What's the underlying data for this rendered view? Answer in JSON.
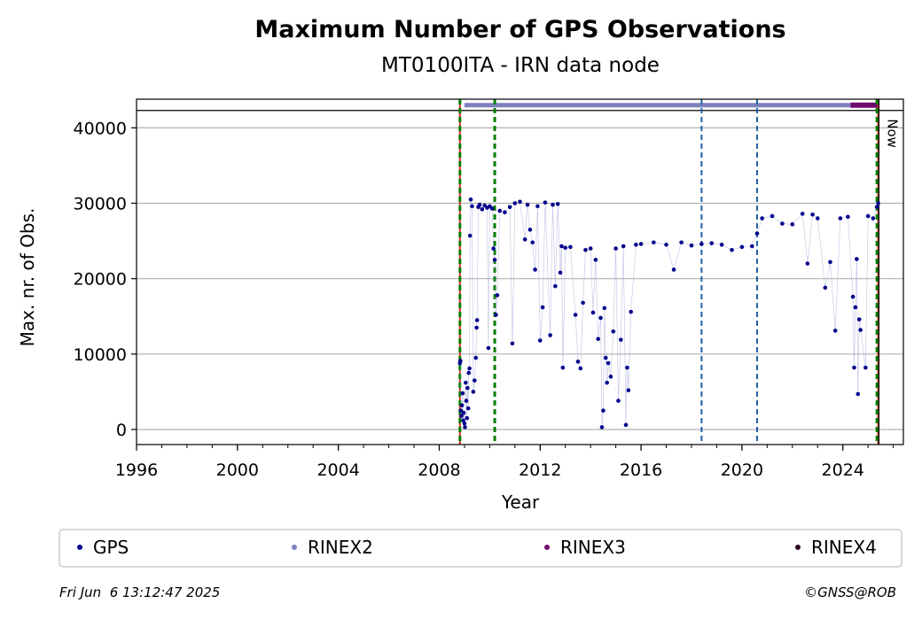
{
  "chart_data": {
    "type": "scatter",
    "title": "Maximum Number of GPS Observations",
    "subtitle": "MT0100ITA - IRN data node",
    "xlabel": "Year",
    "ylabel": "Max. nr. of Obs.",
    "xlim": [
      1996,
      2026.4
    ],
    "ylim": [
      -2000,
      43800
    ],
    "xticks": [
      1996,
      2000,
      2004,
      2008,
      2012,
      2016,
      2020,
      2024
    ],
    "yticks": [
      0,
      10000,
      20000,
      30000,
      40000
    ],
    "grid": "y",
    "now_label": "Now",
    "now_year": 2025.43,
    "events": {
      "red_lines": [
        2008.82,
        2025.4
      ],
      "green_lines": [
        2008.82,
        2010.2,
        2025.35
      ],
      "blue_lines": [
        2018.4,
        2020.6
      ]
    },
    "format_bar": {
      "y": 43000,
      "rinex2": {
        "start": 2009.0,
        "end": 2024.3
      },
      "rinex3": {
        "start": 2024.3,
        "end": 2025.43
      }
    },
    "series": [
      {
        "name": "GPS",
        "color": "#00008b",
        "points": [
          [
            2008.82,
            8800
          ],
          [
            2008.84,
            9100
          ],
          [
            2008.86,
            2500
          ],
          [
            2008.88,
            1800
          ],
          [
            2008.9,
            3200
          ],
          [
            2008.93,
            4800
          ],
          [
            2008.95,
            1200
          ],
          [
            2008.97,
            2200
          ],
          [
            2009.0,
            800
          ],
          [
            2009.02,
            300
          ],
          [
            2009.05,
            6200
          ],
          [
            2009.07,
            3800
          ],
          [
            2009.1,
            1500
          ],
          [
            2009.12,
            5500
          ],
          [
            2009.15,
            2800
          ],
          [
            2009.17,
            7500
          ],
          [
            2009.2,
            8100
          ],
          [
            2009.22,
            25700
          ],
          [
            2009.25,
            30500
          ],
          [
            2009.3,
            29600
          ],
          [
            2009.35,
            5000
          ],
          [
            2009.4,
            6500
          ],
          [
            2009.45,
            9500
          ],
          [
            2009.48,
            13500
          ],
          [
            2009.5,
            14500
          ],
          [
            2009.55,
            29500
          ],
          [
            2009.6,
            29800
          ],
          [
            2009.7,
            29200
          ],
          [
            2009.8,
            29700
          ],
          [
            2009.9,
            29400
          ],
          [
            2009.95,
            10800
          ],
          [
            2010.0,
            29600
          ],
          [
            2010.1,
            29300
          ],
          [
            2010.15,
            24000
          ],
          [
            2010.2,
            22500
          ],
          [
            2010.25,
            15200
          ],
          [
            2010.3,
            17800
          ],
          [
            2010.4,
            29000
          ],
          [
            2010.6,
            28800
          ],
          [
            2010.8,
            29500
          ],
          [
            2010.9,
            11400
          ],
          [
            2011.0,
            30000
          ],
          [
            2011.2,
            30200
          ],
          [
            2011.4,
            25200
          ],
          [
            2011.5,
            29800
          ],
          [
            2011.6,
            26500
          ],
          [
            2011.7,
            24800
          ],
          [
            2011.8,
            21200
          ],
          [
            2011.9,
            29600
          ],
          [
            2012.0,
            11800
          ],
          [
            2012.1,
            16200
          ],
          [
            2012.2,
            30100
          ],
          [
            2012.4,
            12500
          ],
          [
            2012.5,
            29800
          ],
          [
            2012.6,
            19000
          ],
          [
            2012.7,
            29900
          ],
          [
            2012.8,
            20800
          ],
          [
            2012.85,
            24300
          ],
          [
            2012.9,
            8200
          ],
          [
            2013.0,
            24100
          ],
          [
            2013.2,
            24200
          ],
          [
            2013.4,
            15200
          ],
          [
            2013.5,
            9000
          ],
          [
            2013.6,
            8100
          ],
          [
            2013.7,
            16800
          ],
          [
            2013.8,
            23800
          ],
          [
            2014.0,
            24000
          ],
          [
            2014.1,
            15500
          ],
          [
            2014.2,
            22500
          ],
          [
            2014.3,
            12000
          ],
          [
            2014.4,
            14800
          ],
          [
            2014.45,
            300
          ],
          [
            2014.5,
            2500
          ],
          [
            2014.55,
            16100
          ],
          [
            2014.6,
            9500
          ],
          [
            2014.65,
            6200
          ],
          [
            2014.7,
            8800
          ],
          [
            2014.8,
            7000
          ],
          [
            2014.9,
            13000
          ],
          [
            2015.0,
            24000
          ],
          [
            2015.1,
            3800
          ],
          [
            2015.2,
            11900
          ],
          [
            2015.3,
            24300
          ],
          [
            2015.4,
            600
          ],
          [
            2015.45,
            8200
          ],
          [
            2015.5,
            5200
          ],
          [
            2015.6,
            15600
          ],
          [
            2015.8,
            24500
          ],
          [
            2016.0,
            24600
          ],
          [
            2016.5,
            24800
          ],
          [
            2017.0,
            24500
          ],
          [
            2017.3,
            21200
          ],
          [
            2017.6,
            24800
          ],
          [
            2018.0,
            24400
          ],
          [
            2018.4,
            24600
          ],
          [
            2018.8,
            24700
          ],
          [
            2019.2,
            24500
          ],
          [
            2019.6,
            23800
          ],
          [
            2020.0,
            24200
          ],
          [
            2020.4,
            24300
          ],
          [
            2020.6,
            26000
          ],
          [
            2020.8,
            28000
          ],
          [
            2021.2,
            28300
          ],
          [
            2021.6,
            27300
          ],
          [
            2022.0,
            27200
          ],
          [
            2022.4,
            28600
          ],
          [
            2022.6,
            22000
          ],
          [
            2022.8,
            28500
          ],
          [
            2023.0,
            28000
          ],
          [
            2023.3,
            18800
          ],
          [
            2023.5,
            22200
          ],
          [
            2023.7,
            13100
          ],
          [
            2023.9,
            28000
          ],
          [
            2024.2,
            28200
          ],
          [
            2024.4,
            17600
          ],
          [
            2024.45,
            8200
          ],
          [
            2024.5,
            16200
          ],
          [
            2024.55,
            22600
          ],
          [
            2024.6,
            4700
          ],
          [
            2024.65,
            14600
          ],
          [
            2024.7,
            13200
          ],
          [
            2024.9,
            8200
          ],
          [
            2025.0,
            28300
          ],
          [
            2025.2,
            28000
          ],
          [
            2025.35,
            29500
          ],
          [
            2025.4,
            30000
          ]
        ]
      },
      {
        "name": "RINEX2",
        "color": "#7e7fbf"
      },
      {
        "name": "RINEX3",
        "color": "#6e0a6e"
      },
      {
        "name": "RINEX4",
        "color": "#2b0522"
      }
    ]
  },
  "footer": {
    "timestamp": "Fri Jun  6 13:12:47 2025",
    "copyright": "©GNSS@ROB"
  }
}
